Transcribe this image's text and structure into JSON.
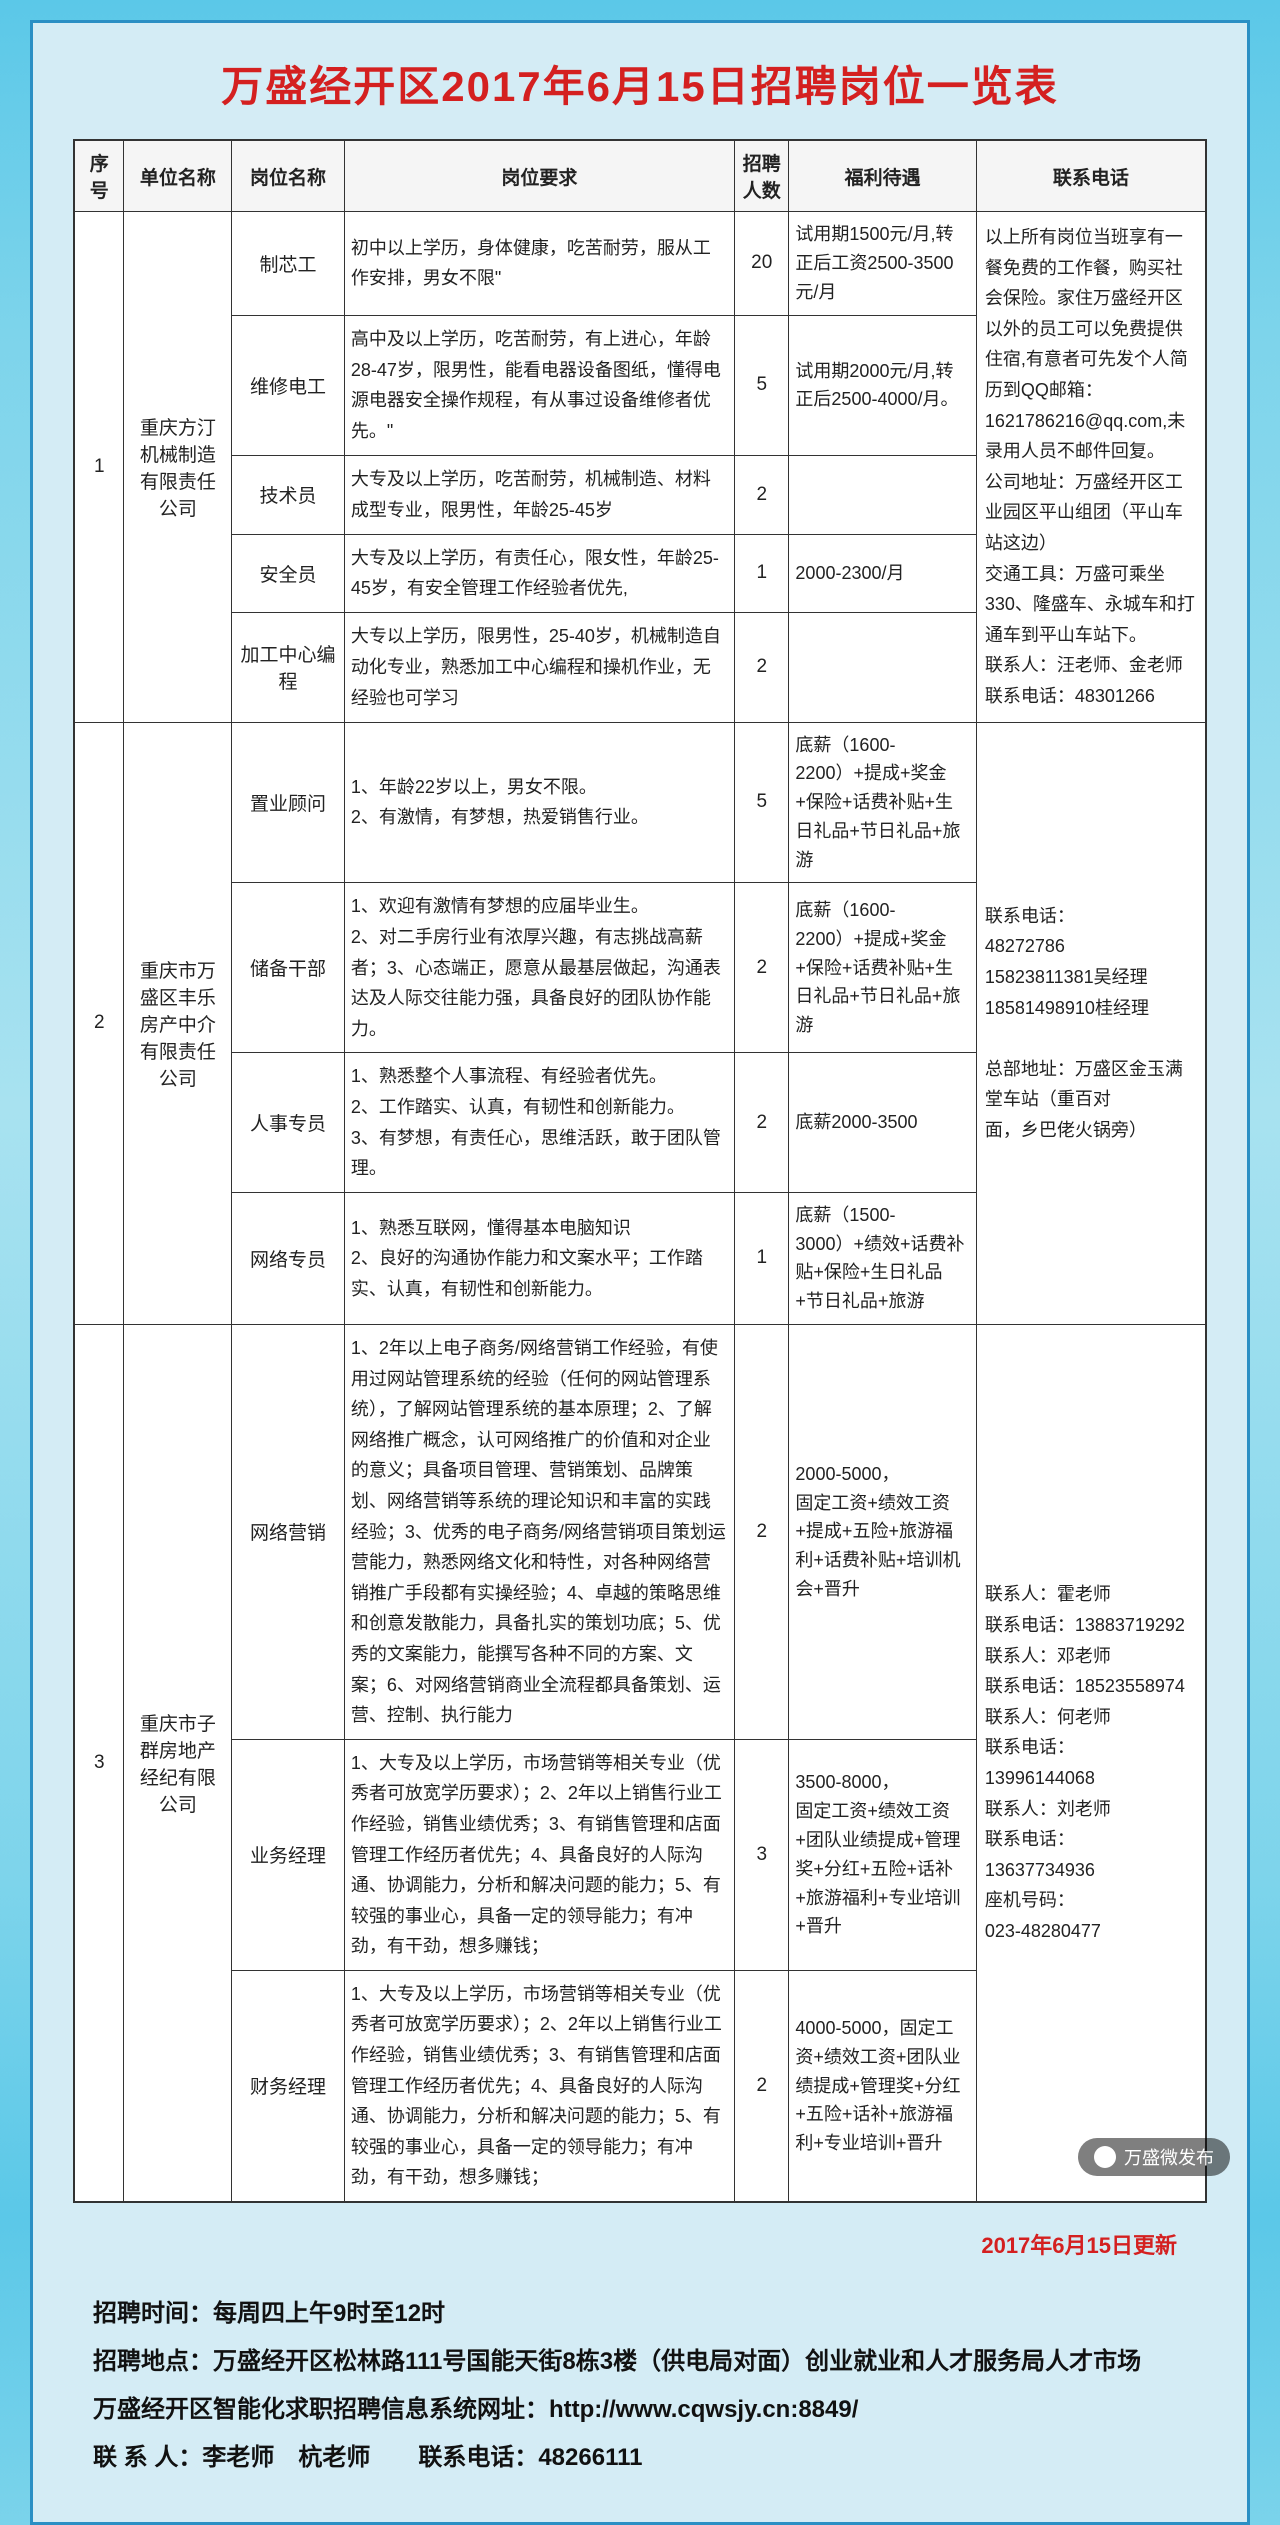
{
  "title": "万盛经开区2017年6月15日招聘岗位一览表",
  "headers": {
    "seq": "序号",
    "company": "单位名称",
    "position": "岗位名称",
    "requirement": "岗位要求",
    "count": "招聘人数",
    "benefit": "福利待遇",
    "contact": "联系电话"
  },
  "companies": [
    {
      "seq": "1",
      "name": "重庆方汀机械制造有限责任公司",
      "contact": "以上所有岗位当班享有一餐免费的工作餐，购买社会保险。家住万盛经开区以外的员工可以免费提供住宿,有意者可先发个人简历到QQ邮箱：1621786216@qq.com,未录用人员不邮件回复。\n公司地址：万盛经开区工业园区平山组团（平山车站这边）\n交通工具：万盛可乘坐330、隆盛车、永城车和打通车到平山车站下。\n联系人：汪老师、金老师　　联系电话：48301266",
      "positions": [
        {
          "name": "制芯工",
          "req": "初中以上学历，身体健康，吃苦耐劳，服从工作安排，男女不限\"",
          "count": "20",
          "benefit": "试用期1500元/月,转正后工资2500-3500元/月"
        },
        {
          "name": "维修电工",
          "req": "高中及以上学历，吃苦耐劳，有上进心，年龄28-47岁，限男性，能看电器设备图纸，懂得电源电器安全操作规程，有从事过设备维修者优先。\"",
          "count": "5",
          "benefit": "试用期2000元/月,转正后2500-4000/月。"
        },
        {
          "name": "技术员",
          "req": "大专及以上学历，吃苦耐劳，机械制造、材料成型专业，限男性，年龄25-45岁",
          "count": "2",
          "benefit": ""
        },
        {
          "name": "安全员",
          "req": "大专及以上学历，有责任心，限女性，年龄25-45岁，有安全管理工作经验者优先,",
          "count": "1",
          "benefit": "2000-2300/月"
        },
        {
          "name": "加工中心编程",
          "req": "大专以上学历，限男性，25-40岁，机械制造自动化专业，熟悉加工中心编程和操机作业，无经验也可学习",
          "count": "2",
          "benefit": ""
        }
      ]
    },
    {
      "seq": "2",
      "name": "重庆市万盛区丰乐房产中介有限责任公司",
      "contact": "联系电话：\n48272786\n15823811381吴经理\n18581498910桂经理\n\n总部地址：万盛区金玉满堂车站（重百对\n面，乡巴佬火锅旁）",
      "positions": [
        {
          "name": "置业顾问",
          "req": "1、年龄22岁以上，男女不限。\n2、有激情，有梦想，热爱销售行业。",
          "count": "5",
          "benefit": "底薪（1600-2200）+提成+奖金+保险+话费补贴+生日礼品+节日礼品+旅游"
        },
        {
          "name": "储备干部",
          "req": "1、欢迎有激情有梦想的应届毕业生。\n2、对二手房行业有浓厚兴趣，有志挑战高薪者；3、心态端正，愿意从最基层做起，沟通表达及人际交往能力强，具备良好的团队协作能力。",
          "count": "2",
          "benefit": "底薪（1600-2200）+提成+奖金+保险+话费补贴+生日礼品+节日礼品+旅游"
        },
        {
          "name": "人事专员",
          "req": "1、熟悉整个人事流程、有经验者优先。\n2、工作踏实、认真，有韧性和创新能力。\n3、有梦想，有责任心，思维活跃，敢于团队管理。",
          "count": "2",
          "benefit": "底薪2000-3500"
        },
        {
          "name": "网络专员",
          "req": "1、熟悉互联网，懂得基本电脑知识\n2、良好的沟通协作能力和文案水平；工作踏实、认真，有韧性和创新能力。",
          "count": "1",
          "benefit": "底薪（1500-3000）+绩效+话费补贴+保险+生日礼品+节日礼品+旅游"
        }
      ]
    },
    {
      "seq": "3",
      "name": "重庆市子群房地产经纪有限公司",
      "contact": "联系人：霍老师\n联系电话：13883719292\n联系人：邓老师\n联系电话：18523558974\n联系人：何老师\n联系电话：\n13996144068\n联系人：刘老师\n联系电话：\n13637734936\n座机号码：\n023-48280477",
      "positions": [
        {
          "name": "网络营销",
          "req": "1、2年以上电子商务/网络营销工作经验，有使用过网站管理系统的经验（任何的网站管理系统），了解网站管理系统的基本原理；2、了解网络推广概念，认可网络推广的价值和对企业的意义；具备项目管理、营销策划、品牌策划、网络营销等系统的理论知识和丰富的实践经验；3、优秀的电子商务/网络营销项目策划运营能力，熟悉网络文化和特性，对各种网络营销推广手段都有实操经验；4、卓越的策略思维和创意发散能力，具备扎实的策划功底；5、优秀的文案能力，能撰写各种不同的方案、文案；6、对网络营销商业全流程都具备策划、运营、控制、执行能力",
          "count": "2",
          "benefit": "2000-5000，\n固定工资+绩效工资+提成+五险+旅游福利+话费补贴+培训机会+晋升"
        },
        {
          "name": "业务经理",
          "req": "1、大专及以上学历，市场营销等相关专业（优秀者可放宽学历要求）；2、2年以上销售行业工作经验，销售业绩优秀；3、有销售管理和店面管理工作经历者优先；4、具备良好的人际沟通、协调能力，分析和解决问题的能力；5、有较强的事业心，具备一定的领导能力；有冲劲，有干劲，想多赚钱；",
          "count": "3",
          "benefit": "3500-8000，\n固定工资+绩效工资+团队业绩提成+管理奖+分红+五险+话补+旅游福利+专业培训+晋升"
        },
        {
          "name": "财务经理",
          "req": "1、大专及以上学历，市场营销等相关专业（优秀者可放宽学历要求）；2、2年以上销售行业工作经验，销售业绩优秀；3、有销售管理和店面管理工作经历者优先；4、具备良好的人际沟通、协调能力，分析和解决问题的能力；5、有较强的事业心，具备一定的领导能力；有冲劲，有干劲，想多赚钱；",
          "count": "2",
          "benefit": "4000-5000，固定工资+绩效工资+团队业绩提成+管理奖+分红+五险+话补+旅游福利+专业培训+晋升"
        }
      ]
    }
  ],
  "update_note": "2017年6月15日更新",
  "footer": {
    "line1": "招聘时间：每周四上午9时至12时",
    "line2": "招聘地点：万盛经开区松林路111号国能天街8栋3楼（供电局对面）创业就业和人才服务局人才市场",
    "line3": "万盛经开区智能化求职招聘信息系统网址：http://www.cqwsjy.cn:8849/",
    "line4": "联 系 人：李老师　杭老师　　联系电话：48266111"
  },
  "wechat_name": "万盛微发布"
}
